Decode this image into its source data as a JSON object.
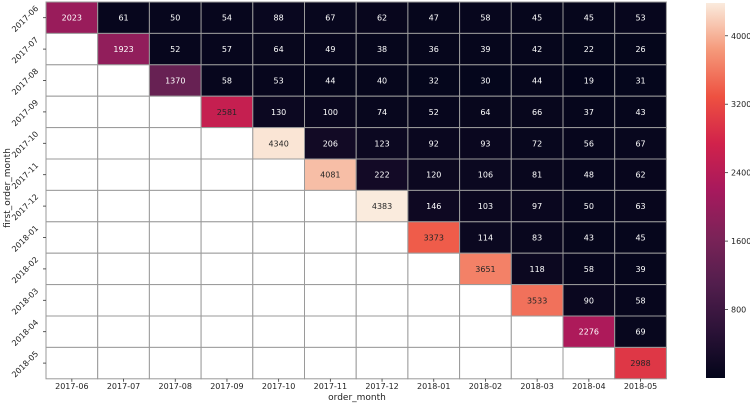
{
  "chart_data": {
    "type": "heatmap",
    "xlabel": "order_month",
    "ylabel": "first_order_month",
    "x_categories": [
      "2017-06",
      "2017-07",
      "2017-08",
      "2017-09",
      "2017-10",
      "2017-11",
      "2017-12",
      "2018-01",
      "2018-02",
      "2018-03",
      "2018-04",
      "2018-05"
    ],
    "y_categories": [
      "2017-06",
      "2017-07",
      "2017-08",
      "2017-09",
      "2017-10",
      "2017-11",
      "2017-12",
      "2018-01",
      "2018-02",
      "2018-03",
      "2018-04",
      "2018-05"
    ],
    "values": [
      [
        2023,
        61,
        50,
        54,
        88,
        67,
        62,
        47,
        58,
        45,
        45,
        53
      ],
      [
        null,
        1923,
        52,
        57,
        64,
        49,
        38,
        36,
        39,
        42,
        22,
        26
      ],
      [
        null,
        null,
        1370,
        58,
        53,
        44,
        40,
        32,
        30,
        44,
        19,
        31
      ],
      [
        null,
        null,
        null,
        2581,
        130,
        100,
        74,
        52,
        64,
        66,
        37,
        43
      ],
      [
        null,
        null,
        null,
        null,
        4340,
        206,
        123,
        92,
        93,
        72,
        56,
        67
      ],
      [
        null,
        null,
        null,
        null,
        null,
        4081,
        222,
        120,
        106,
        81,
        48,
        62
      ],
      [
        null,
        null,
        null,
        null,
        null,
        null,
        4383,
        146,
        103,
        97,
        50,
        63
      ],
      [
        null,
        null,
        null,
        null,
        null,
        null,
        null,
        3373,
        114,
        83,
        43,
        45
      ],
      [
        null,
        null,
        null,
        null,
        null,
        null,
        null,
        null,
        3651,
        118,
        58,
        39
      ],
      [
        null,
        null,
        null,
        null,
        null,
        null,
        null,
        null,
        null,
        3533,
        90,
        58
      ],
      [
        null,
        null,
        null,
        null,
        null,
        null,
        null,
        null,
        null,
        null,
        2276,
        69
      ],
      [
        null,
        null,
        null,
        null,
        null,
        null,
        null,
        null,
        null,
        null,
        null,
        2988
      ]
    ],
    "colorbar": {
      "min": 0,
      "max": 4383,
      "ticks": [
        800,
        1600,
        2400,
        3200,
        4000
      ],
      "colormap": "rocket"
    },
    "grid": true,
    "legend": "colorbar-right"
  }
}
